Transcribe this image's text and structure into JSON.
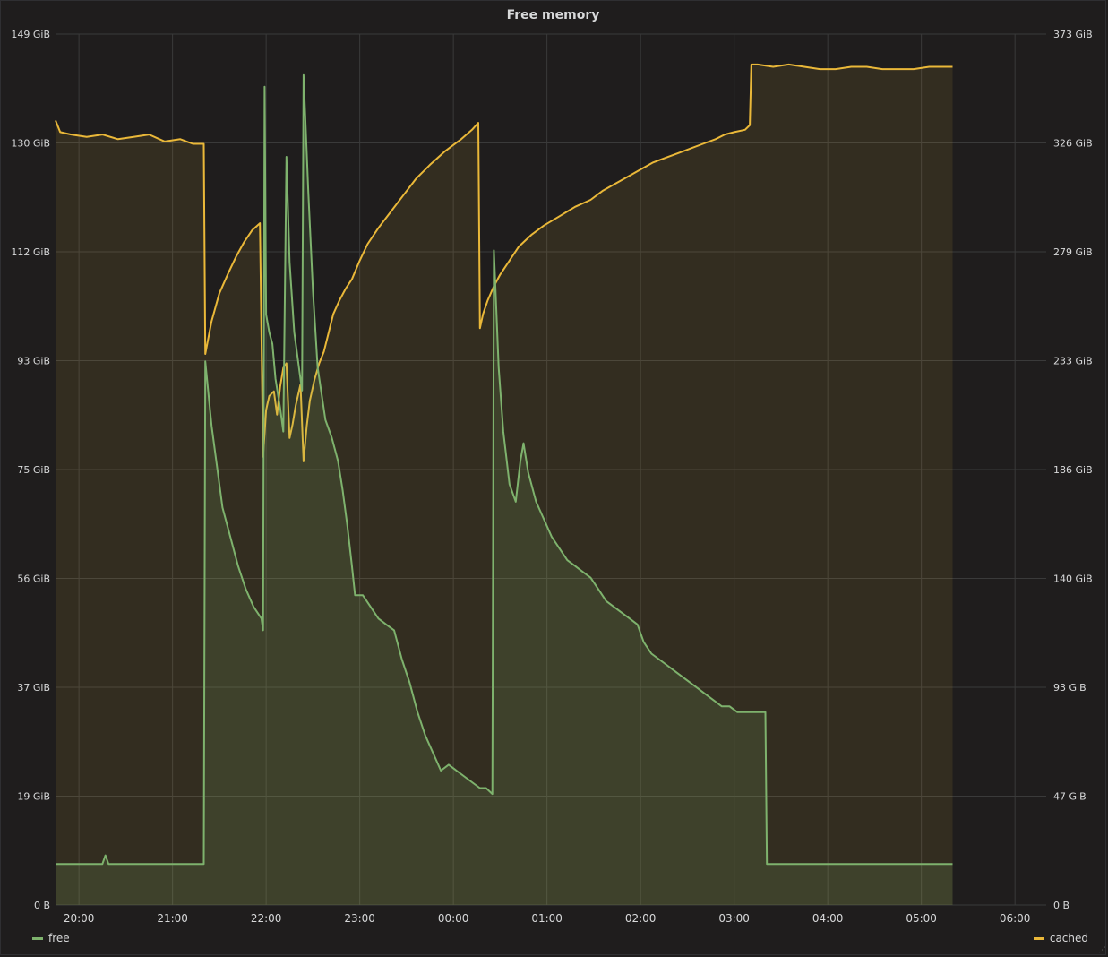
{
  "panel": {
    "title": "Free memory"
  },
  "colors": {
    "free": "#7eb26d",
    "cached": "#eab839",
    "grid": "#3a3a3a",
    "text": "#d8d9da",
    "background": "#1f1d1d"
  },
  "chart_data": {
    "type": "line",
    "title": "Free memory",
    "grid": true,
    "legend_position": "bottom",
    "x_ticks": [
      "20:00",
      "21:00",
      "22:00",
      "23:00",
      "00:00",
      "01:00",
      "02:00",
      "03:00",
      "04:00",
      "05:00",
      "06:00"
    ],
    "xlim": [
      "19:45",
      "06:20"
    ],
    "y_left": {
      "ticks": [
        "0 B",
        "19 GiB",
        "37 GiB",
        "56 GiB",
        "75 GiB",
        "93 GiB",
        "112 GiB",
        "130 GiB",
        "149 GiB"
      ],
      "ylim_gib": [
        0,
        149
      ]
    },
    "y_right": {
      "ticks": [
        "0 B",
        "47 GiB",
        "93 GiB",
        "140 GiB",
        "186 GiB",
        "233 GiB",
        "279 GiB",
        "326 GiB",
        "373 GiB"
      ],
      "ylim_gib": [
        0,
        373
      ]
    },
    "series": [
      {
        "name": "free",
        "axis": "left",
        "unit": "GiB",
        "points": [
          [
            "19:45",
            7.0
          ],
          [
            "20:00",
            7.0
          ],
          [
            "20:15",
            7.0
          ],
          [
            "20:17",
            8.5
          ],
          [
            "20:19",
            7.0
          ],
          [
            "20:45",
            7.0
          ],
          [
            "21:00",
            7.0
          ],
          [
            "21:20",
            7.0
          ],
          [
            "21:21",
            93
          ],
          [
            "21:25",
            82
          ],
          [
            "21:32",
            68
          ],
          [
            "21:37",
            63
          ],
          [
            "21:42",
            58
          ],
          [
            "21:47",
            54
          ],
          [
            "21:52",
            51
          ],
          [
            "21:57",
            49
          ],
          [
            "21:58",
            47
          ],
          [
            "21:59",
            140
          ],
          [
            "22:00",
            101
          ],
          [
            "22:02",
            98
          ],
          [
            "22:04",
            96
          ],
          [
            "22:06",
            90
          ],
          [
            "22:09",
            85
          ],
          [
            "22:11",
            81
          ],
          [
            "22:13",
            128
          ],
          [
            "22:15",
            110
          ],
          [
            "22:18",
            98
          ],
          [
            "22:21",
            92
          ],
          [
            "22:23",
            88
          ],
          [
            "22:24",
            142
          ],
          [
            "22:27",
            122
          ],
          [
            "22:30",
            105
          ],
          [
            "22:33",
            92
          ],
          [
            "22:38",
            83
          ],
          [
            "22:42",
            80
          ],
          [
            "22:46",
            76
          ],
          [
            "22:49",
            71
          ],
          [
            "22:52",
            65
          ],
          [
            "22:55",
            58
          ],
          [
            "22:57",
            53
          ],
          [
            "23:02",
            53
          ],
          [
            "23:07",
            51
          ],
          [
            "23:12",
            49
          ],
          [
            "23:17",
            48
          ],
          [
            "23:22",
            47
          ],
          [
            "23:27",
            42
          ],
          [
            "23:32",
            38
          ],
          [
            "23:37",
            33
          ],
          [
            "23:42",
            29
          ],
          [
            "23:47",
            26
          ],
          [
            "23:52",
            23
          ],
          [
            "23:57",
            24
          ],
          [
            "00:02",
            23
          ],
          [
            "00:07",
            22
          ],
          [
            "00:12",
            21
          ],
          [
            "00:17",
            20
          ],
          [
            "00:21",
            20
          ],
          [
            "00:25",
            19
          ],
          [
            "00:26",
            112
          ],
          [
            "00:29",
            92
          ],
          [
            "00:32",
            81
          ],
          [
            "00:36",
            72
          ],
          [
            "00:40",
            69
          ],
          [
            "00:43",
            76
          ],
          [
            "00:45",
            79
          ],
          [
            "00:48",
            74
          ],
          [
            "00:53",
            69
          ],
          [
            "00:58",
            66
          ],
          [
            "01:03",
            63
          ],
          [
            "01:08",
            61
          ],
          [
            "01:13",
            59
          ],
          [
            "01:18",
            58
          ],
          [
            "01:23",
            57
          ],
          [
            "01:28",
            56
          ],
          [
            "01:33",
            54
          ],
          [
            "01:38",
            52
          ],
          [
            "01:43",
            51
          ],
          [
            "01:48",
            50
          ],
          [
            "01:53",
            49
          ],
          [
            "01:58",
            48
          ],
          [
            "02:02",
            45
          ],
          [
            "02:07",
            43
          ],
          [
            "02:12",
            42
          ],
          [
            "02:17",
            41
          ],
          [
            "02:22",
            40
          ],
          [
            "02:27",
            39
          ],
          [
            "02:32",
            38
          ],
          [
            "02:37",
            37
          ],
          [
            "02:42",
            36
          ],
          [
            "02:47",
            35
          ],
          [
            "02:52",
            34
          ],
          [
            "02:57",
            34
          ],
          [
            "03:02",
            33
          ],
          [
            "03:07",
            33
          ],
          [
            "03:12",
            33
          ],
          [
            "03:17",
            33
          ],
          [
            "03:20",
            33
          ],
          [
            "03:21",
            7.0
          ],
          [
            "03:30",
            7.0
          ],
          [
            "04:00",
            7.0
          ],
          [
            "04:30",
            7.0
          ],
          [
            "05:00",
            7.0
          ],
          [
            "05:20",
            7.0
          ]
        ]
      },
      {
        "name": "cached",
        "axis": "right",
        "unit": "GiB",
        "points": [
          [
            "19:45",
            336
          ],
          [
            "19:48",
            331
          ],
          [
            "19:55",
            330
          ],
          [
            "20:05",
            329
          ],
          [
            "20:15",
            330
          ],
          [
            "20:25",
            328
          ],
          [
            "20:35",
            329
          ],
          [
            "20:45",
            330
          ],
          [
            "20:55",
            327
          ],
          [
            "21:05",
            328
          ],
          [
            "21:13",
            326
          ],
          [
            "21:20",
            326
          ],
          [
            "21:21",
            236
          ],
          [
            "21:25",
            250
          ],
          [
            "21:30",
            262
          ],
          [
            "21:36",
            271
          ],
          [
            "21:41",
            278
          ],
          [
            "21:46",
            284
          ],
          [
            "21:51",
            289
          ],
          [
            "21:56",
            292
          ],
          [
            "21:58",
            192
          ],
          [
            "22:00",
            212
          ],
          [
            "22:02",
            218
          ],
          [
            "22:05",
            220
          ],
          [
            "22:07",
            210
          ],
          [
            "22:09",
            222
          ],
          [
            "22:11",
            230
          ],
          [
            "22:13",
            232
          ],
          [
            "22:15",
            200
          ],
          [
            "22:17",
            206
          ],
          [
            "22:19",
            214
          ],
          [
            "22:22",
            223
          ],
          [
            "22:24",
            190
          ],
          [
            "22:26",
            205
          ],
          [
            "22:28",
            216
          ],
          [
            "22:31",
            225
          ],
          [
            "22:34",
            232
          ],
          [
            "22:37",
            237
          ],
          [
            "22:40",
            245
          ],
          [
            "22:43",
            253
          ],
          [
            "22:47",
            259
          ],
          [
            "22:51",
            264
          ],
          [
            "22:55",
            268
          ],
          [
            "23:00",
            276
          ],
          [
            "23:05",
            283
          ],
          [
            "23:12",
            290
          ],
          [
            "23:20",
            297
          ],
          [
            "23:28",
            304
          ],
          [
            "23:36",
            311
          ],
          [
            "23:45",
            317
          ],
          [
            "23:55",
            323
          ],
          [
            "00:05",
            328
          ],
          [
            "00:12",
            332
          ],
          [
            "00:16",
            335
          ],
          [
            "00:17",
            247
          ],
          [
            "00:19",
            253
          ],
          [
            "00:22",
            259
          ],
          [
            "00:26",
            265
          ],
          [
            "00:30",
            270
          ],
          [
            "00:36",
            276
          ],
          [
            "00:42",
            282
          ],
          [
            "00:50",
            287
          ],
          [
            "00:58",
            291
          ],
          [
            "01:08",
            295
          ],
          [
            "01:18",
            299
          ],
          [
            "01:28",
            302
          ],
          [
            "01:36",
            306
          ],
          [
            "01:44",
            309
          ],
          [
            "01:52",
            312
          ],
          [
            "02:00",
            315
          ],
          [
            "02:08",
            318
          ],
          [
            "02:16",
            320
          ],
          [
            "02:24",
            322
          ],
          [
            "02:32",
            324
          ],
          [
            "02:40",
            326
          ],
          [
            "02:48",
            328
          ],
          [
            "02:54",
            330
          ],
          [
            "03:00",
            331
          ],
          [
            "03:07",
            332
          ],
          [
            "03:10",
            334
          ],
          [
            "03:11",
            360
          ],
          [
            "03:15",
            360
          ],
          [
            "03:25",
            359
          ],
          [
            "03:35",
            360
          ],
          [
            "03:45",
            359
          ],
          [
            "03:55",
            358
          ],
          [
            "04:05",
            358
          ],
          [
            "04:15",
            359
          ],
          [
            "04:25",
            359
          ],
          [
            "04:35",
            358
          ],
          [
            "04:45",
            358
          ],
          [
            "04:55",
            358
          ],
          [
            "05:05",
            359
          ],
          [
            "05:20",
            359
          ]
        ]
      }
    ]
  },
  "legend": [
    {
      "label": "free",
      "color": "#7eb26d"
    },
    {
      "label": "cached",
      "color": "#eab839"
    }
  ]
}
